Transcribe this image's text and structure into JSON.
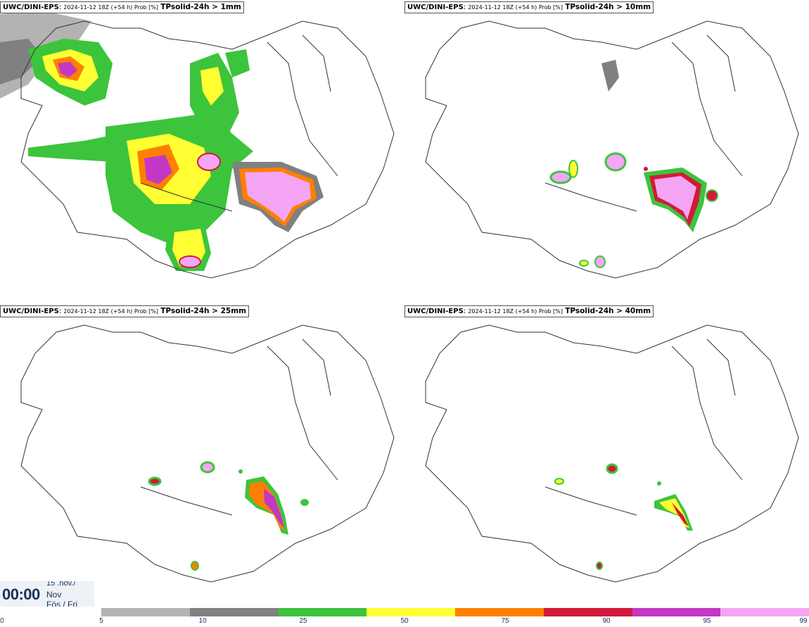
{
  "panels": [
    {
      "model": "UWC/DINI-EPS",
      "run": "2024-11-12 18Z (+54 h) Prob [%]",
      "param": "TPsolid-24h > 1mm"
    },
    {
      "model": "UWC/DINI-EPS",
      "run": "2024-11-12 18Z (+54 h) Prob [%]",
      "param": "TPsolid-24h > 10mm"
    },
    {
      "model": "UWC/DINI-EPS",
      "run": "2024-11-12 18Z (+54 h) Prob [%]",
      "param": "TPsolid-24h > 25mm"
    },
    {
      "model": "UWC/DINI-EPS",
      "run": "2024-11-12 18Z (+54 h) Prob [%]",
      "param": "TPsolid-24h > 40mm"
    }
  ],
  "valid_time": {
    "clock": "00:00",
    "date_num": "15 .nóv./",
    "month": "Nov",
    "weekday": "Fös / Fri"
  },
  "colorbar": {
    "labels": [
      "0",
      "5",
      "10",
      "25",
      "50",
      "75",
      "90",
      "95",
      "99"
    ],
    "colors": [
      "#b3b3b3",
      "#808080",
      "#3cc43c",
      "#ffff33",
      "#ff7f00",
      "#d11a3a",
      "#c437c4",
      "#f4a6f4"
    ]
  },
  "legend_colors": {
    "p5": "#b3b3b3",
    "p10": "#808080",
    "p25": "#3cc43c",
    "p50": "#ffff33",
    "p75": "#ff7f00",
    "p90": "#d11a3a",
    "p95": "#c437c4",
    "p99": "#f4a6f4"
  }
}
